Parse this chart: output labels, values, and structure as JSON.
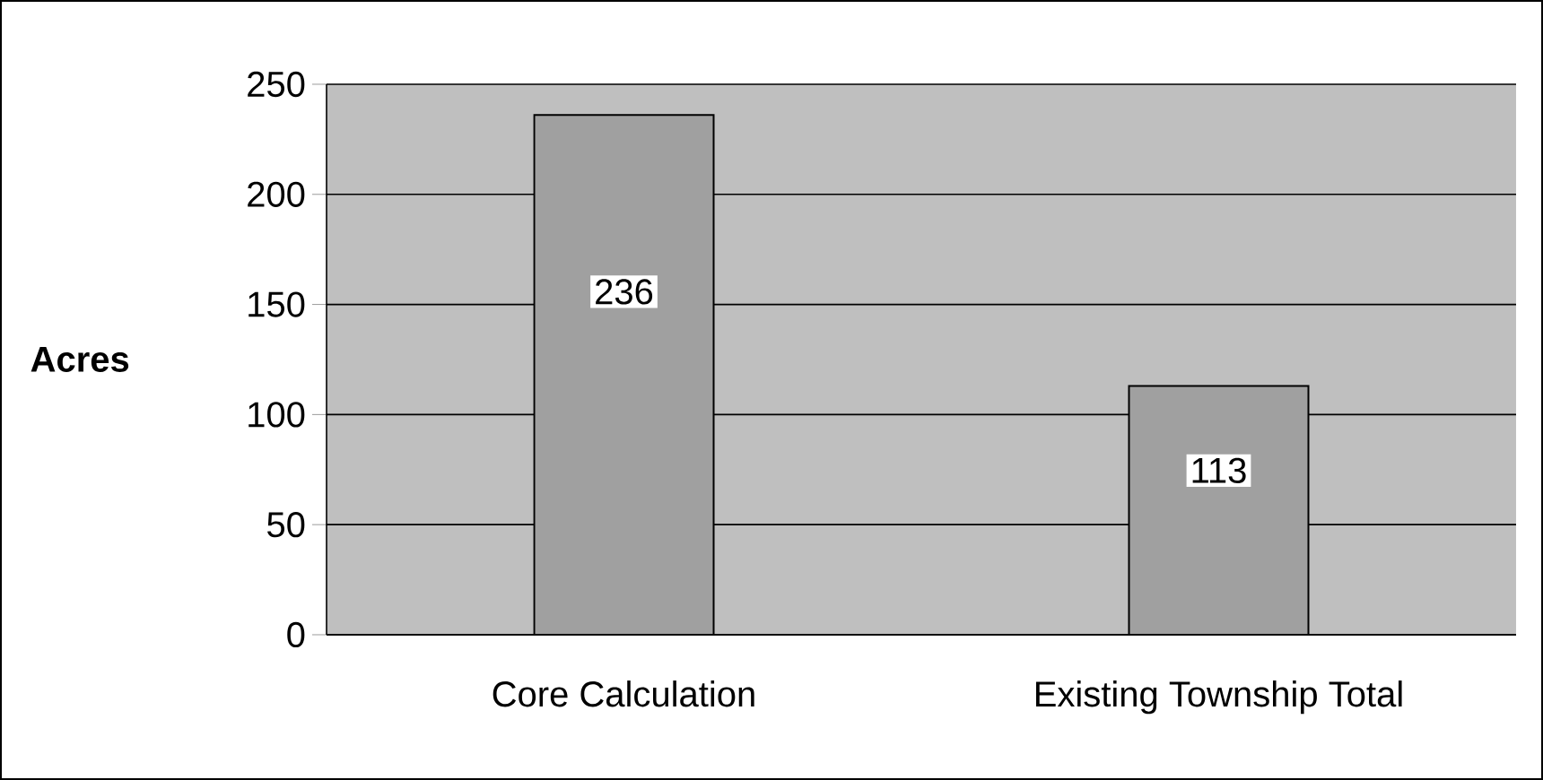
{
  "chart_data": {
    "type": "bar",
    "ylabel": "Acres",
    "categories": [
      "Core Calculation",
      "Existing Township Total"
    ],
    "values": [
      236,
      113
    ],
    "color": "#a0a0a0",
    "ylim": [
      0,
      250
    ],
    "yticks": [
      0,
      50,
      100,
      150,
      200,
      250
    ],
    "grid": "y",
    "data_labels": true
  }
}
